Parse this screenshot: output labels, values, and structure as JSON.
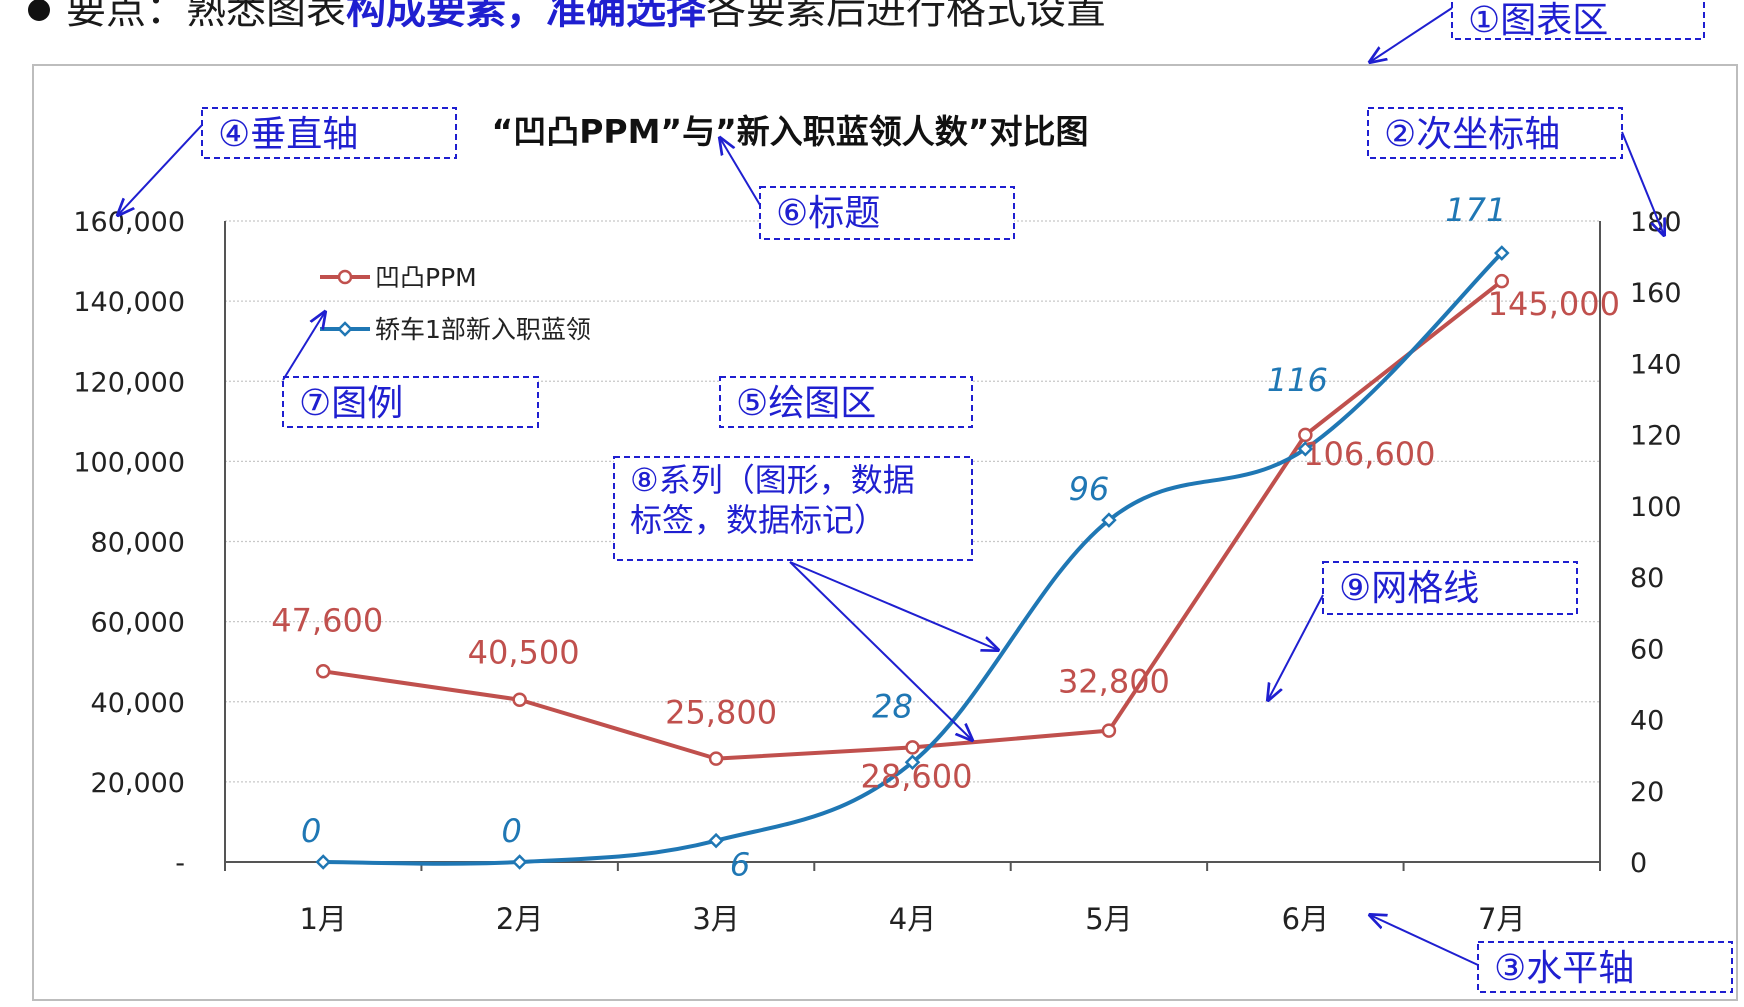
{
  "heading": {
    "prefix": "要点：熟悉图表",
    "highlight1": "构成要素",
    "comma": "，",
    "highlight2": "准确选择",
    "suffix": "各要素后进行格式设置"
  },
  "colors": {
    "ppm": "#c0504d",
    "recruits": "#1f77b4",
    "callout": "#1f1fd0",
    "axis": "#555555",
    "grid": "#c8c8c8"
  },
  "callouts": {
    "chart_area": "①图表区",
    "secondary_axis": "②次坐标轴",
    "horizontal_axis": "③水平轴",
    "vertical_axis": "④垂直轴",
    "plot_area": "⑤绘图区",
    "title": "⑥标题",
    "legend": "⑦图例",
    "series_line1": "⑧系列（图形，数据",
    "series_line2": "标签，数据标记）",
    "gridlines": "⑨网格线"
  },
  "chart_data": {
    "type": "line",
    "title_parts": [
      "“凹凸PPM”与”新入职蓝领人数”对比图"
    ],
    "categories": [
      "1月",
      "2月",
      "3月",
      "4月",
      "5月",
      "6月",
      "7月"
    ],
    "series": [
      {
        "name": "凹凸PPM",
        "axis": "primary",
        "values": [
          47600,
          40500,
          25800,
          28600,
          32800,
          106600,
          145000
        ],
        "labels": [
          "47,600",
          "40,500",
          "25,800",
          "28,600",
          "32,800",
          "106,600",
          "145,000"
        ]
      },
      {
        "name": "轿车1部新入职蓝领",
        "axis": "secondary",
        "values": [
          0,
          0,
          6,
          28,
          96,
          116,
          171
        ],
        "labels": [
          "0",
          "0",
          "6",
          "28",
          "96",
          "116",
          "171"
        ]
      }
    ],
    "y_primary": {
      "min": 0,
      "max": 160000,
      "ticks": [
        "-",
        "20,000",
        "40,000",
        "60,000",
        "80,000",
        "100,000",
        "120,000",
        "140,000",
        "160,000"
      ]
    },
    "y_secondary": {
      "min": 0,
      "max": 180,
      "ticks": [
        "0",
        "20",
        "40",
        "60",
        "80",
        "100",
        "120",
        "140",
        "160",
        "180"
      ]
    },
    "grid": true,
    "legend_position": "top-left"
  }
}
